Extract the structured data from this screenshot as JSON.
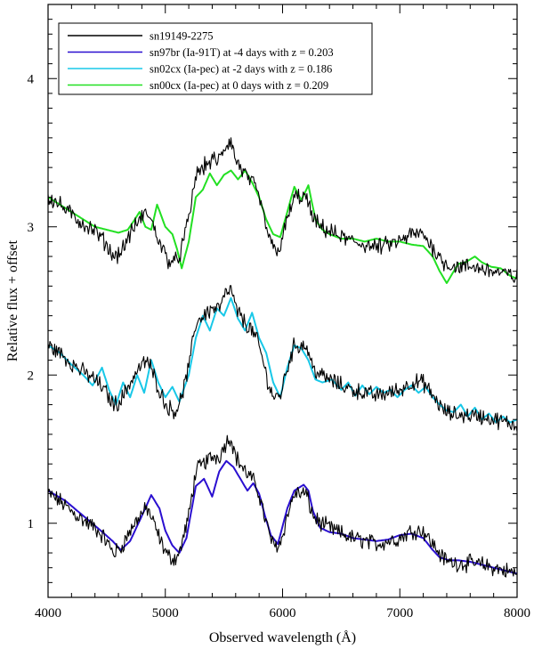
{
  "chart_data": {
    "type": "line",
    "title": "",
    "xlabel": "Observed wavelength (Å)",
    "ylabel": "Relative flux + offset",
    "xlim": [
      4000,
      8000
    ],
    "ylim": [
      0.5,
      4.5
    ],
    "x_ticks": [
      4000,
      5000,
      6000,
      7000,
      8000
    ],
    "x_tick_labels": [
      "4000",
      "5000",
      "6000",
      "7000",
      "8000"
    ],
    "y_ticks": [
      1,
      2,
      3,
      4
    ],
    "y_tick_labels": [
      "1",
      "2",
      "3",
      "4"
    ],
    "grid": false,
    "legend_position": "top-left",
    "legend": [
      {
        "label": "sn19149-2275",
        "color": "#000000"
      },
      {
        "label": "sn97br (Ia-91T) at -4 days with z = 0.203",
        "color": "#2a0fd0"
      },
      {
        "label": "sn02cx (Ia-pec) at -2 days with z = 0.186",
        "color": "#18c8e8"
      },
      {
        "label": "sn00cx (Ia-pec) at 0 days with z = 0.209",
        "color": "#22e022"
      }
    ],
    "series": [
      {
        "name": "sn19149-2275",
        "color": "#000000",
        "noise": 0.045,
        "offsets": [
          0,
          1,
          2
        ],
        "x": [
          4000,
          4100,
          4200,
          4300,
          4400,
          4480,
          4560,
          4620,
          4700,
          4780,
          4850,
          4900,
          4960,
          5020,
          5080,
          5120,
          5200,
          5260,
          5320,
          5400,
          5460,
          5520,
          5560,
          5600,
          5680,
          5740,
          5800,
          5860,
          5920,
          5980,
          6040,
          6100,
          6200,
          6260,
          6320,
          6400,
          6500,
          6600,
          6700,
          6800,
          6900,
          7000,
          7100,
          7200,
          7260,
          7320,
          7360,
          7420,
          7500,
          7600,
          7700,
          7800,
          7900,
          8000
        ],
        "y": [
          1.2,
          1.15,
          1.08,
          1.02,
          0.97,
          0.9,
          0.8,
          0.83,
          0.95,
          1.05,
          1.1,
          1.0,
          0.88,
          0.78,
          0.76,
          0.8,
          1.05,
          1.35,
          1.4,
          1.45,
          1.45,
          1.55,
          1.58,
          1.45,
          1.35,
          1.3,
          1.2,
          1.0,
          0.85,
          0.86,
          1.05,
          1.2,
          1.2,
          1.05,
          1.0,
          0.97,
          0.93,
          0.9,
          0.88,
          0.86,
          0.88,
          0.9,
          0.95,
          0.95,
          0.88,
          0.82,
          0.77,
          0.74,
          0.73,
          0.73,
          0.72,
          0.7,
          0.68,
          0.66
        ]
      },
      {
        "name": "sn97br (Ia-91T) at -4 days with z = 0.203",
        "color": "#2a0fd0",
        "noise": 0,
        "offsets": [
          0
        ],
        "x": [
          4000,
          4150,
          4300,
          4450,
          4550,
          4620,
          4700,
          4800,
          4880,
          4950,
          5000,
          5060,
          5120,
          5180,
          5260,
          5330,
          5400,
          5460,
          5520,
          5580,
          5640,
          5700,
          5750,
          5800,
          5850,
          5900,
          5960,
          6040,
          6100,
          6180,
          6220,
          6260,
          6320,
          6400,
          6500,
          6600,
          6700,
          6800,
          6900,
          7000,
          7100,
          7200,
          7280,
          7340,
          7420,
          7500,
          7600,
          7700,
          7800,
          7900,
          8000
        ],
        "y": [
          1.22,
          1.15,
          1.05,
          0.95,
          0.88,
          0.82,
          0.88,
          1.05,
          1.19,
          1.1,
          0.95,
          0.85,
          0.8,
          0.9,
          1.25,
          1.3,
          1.18,
          1.35,
          1.42,
          1.38,
          1.3,
          1.22,
          1.27,
          1.2,
          1.05,
          0.92,
          0.86,
          1.1,
          1.22,
          1.26,
          1.22,
          1.08,
          0.97,
          0.94,
          0.93,
          0.9,
          0.89,
          0.88,
          0.89,
          0.92,
          0.93,
          0.9,
          0.82,
          0.77,
          0.75,
          0.75,
          0.74,
          0.72,
          0.7,
          0.68,
          0.66
        ]
      },
      {
        "name": "sn02cx (Ia-pec) at -2 days with z = 0.186",
        "color": "#18c8e8",
        "noise": 0,
        "offsets": [
          1
        ],
        "x": [
          4000,
          4100,
          4200,
          4300,
          4380,
          4460,
          4520,
          4580,
          4640,
          4700,
          4760,
          4820,
          4880,
          4940,
          5000,
          5060,
          5120,
          5200,
          5260,
          5320,
          5380,
          5440,
          5500,
          5560,
          5620,
          5680,
          5740,
          5800,
          5860,
          5920,
          5980,
          6040,
          6100,
          6160,
          6220,
          6280,
          6340,
          6420,
          6500,
          6560,
          6620,
          6680,
          6740,
          6800,
          6860,
          6920,
          6980,
          7040,
          7100,
          7160,
          7220,
          7280,
          7340,
          7400,
          7460,
          7520,
          7580,
          7640,
          7700,
          7760,
          7820,
          7880,
          7940,
          8000
        ],
        "y": [
          1.2,
          1.15,
          1.07,
          1.0,
          0.93,
          1.05,
          0.9,
          0.8,
          0.95,
          0.85,
          1.0,
          0.88,
          1.1,
          0.95,
          0.85,
          0.92,
          0.82,
          1.0,
          1.25,
          1.4,
          1.3,
          1.45,
          1.4,
          1.52,
          1.38,
          1.3,
          1.42,
          1.25,
          1.15,
          0.95,
          0.85,
          1.05,
          1.2,
          1.18,
          1.1,
          0.97,
          0.95,
          0.97,
          0.9,
          0.95,
          0.86,
          0.93,
          0.87,
          0.92,
          0.88,
          0.9,
          0.85,
          0.9,
          0.93,
          0.88,
          0.92,
          0.85,
          0.8,
          0.76,
          0.75,
          0.8,
          0.72,
          0.78,
          0.7,
          0.74,
          0.68,
          0.72,
          0.68,
          0.7
        ]
      },
      {
        "name": "sn00cx (Ia-pec) at 0 days with z = 0.209",
        "color": "#22e022",
        "noise": 0,
        "offsets": [
          2
        ],
        "x": [
          4000,
          4100,
          4200,
          4300,
          4400,
          4500,
          4600,
          4680,
          4740,
          4780,
          4830,
          4880,
          4930,
          5000,
          5060,
          5100,
          5140,
          5200,
          5260,
          5320,
          5380,
          5440,
          5500,
          5560,
          5620,
          5680,
          5740,
          5800,
          5860,
          5920,
          5980,
          6040,
          6100,
          6160,
          6220,
          6280,
          6340,
          6400,
          6500,
          6600,
          6700,
          6800,
          6900,
          7000,
          7100,
          7200,
          7280,
          7340,
          7400,
          7460,
          7500,
          7560,
          7640,
          7700,
          7780,
          7860,
          7940,
          8000
        ],
        "y": [
          1.2,
          1.15,
          1.1,
          1.05,
          1.0,
          0.98,
          0.96,
          0.98,
          1.05,
          1.1,
          1.0,
          0.98,
          1.15,
          1.0,
          0.95,
          0.85,
          0.72,
          0.9,
          1.2,
          1.25,
          1.36,
          1.28,
          1.35,
          1.38,
          1.32,
          1.38,
          1.3,
          1.2,
          1.05,
          0.95,
          0.93,
          1.1,
          1.27,
          1.18,
          1.28,
          1.05,
          0.98,
          0.95,
          0.92,
          0.92,
          0.9,
          0.92,
          0.9,
          0.9,
          0.88,
          0.87,
          0.8,
          0.7,
          0.62,
          0.7,
          0.75,
          0.76,
          0.8,
          0.76,
          0.73,
          0.72,
          0.67,
          0.65
        ]
      }
    ]
  }
}
